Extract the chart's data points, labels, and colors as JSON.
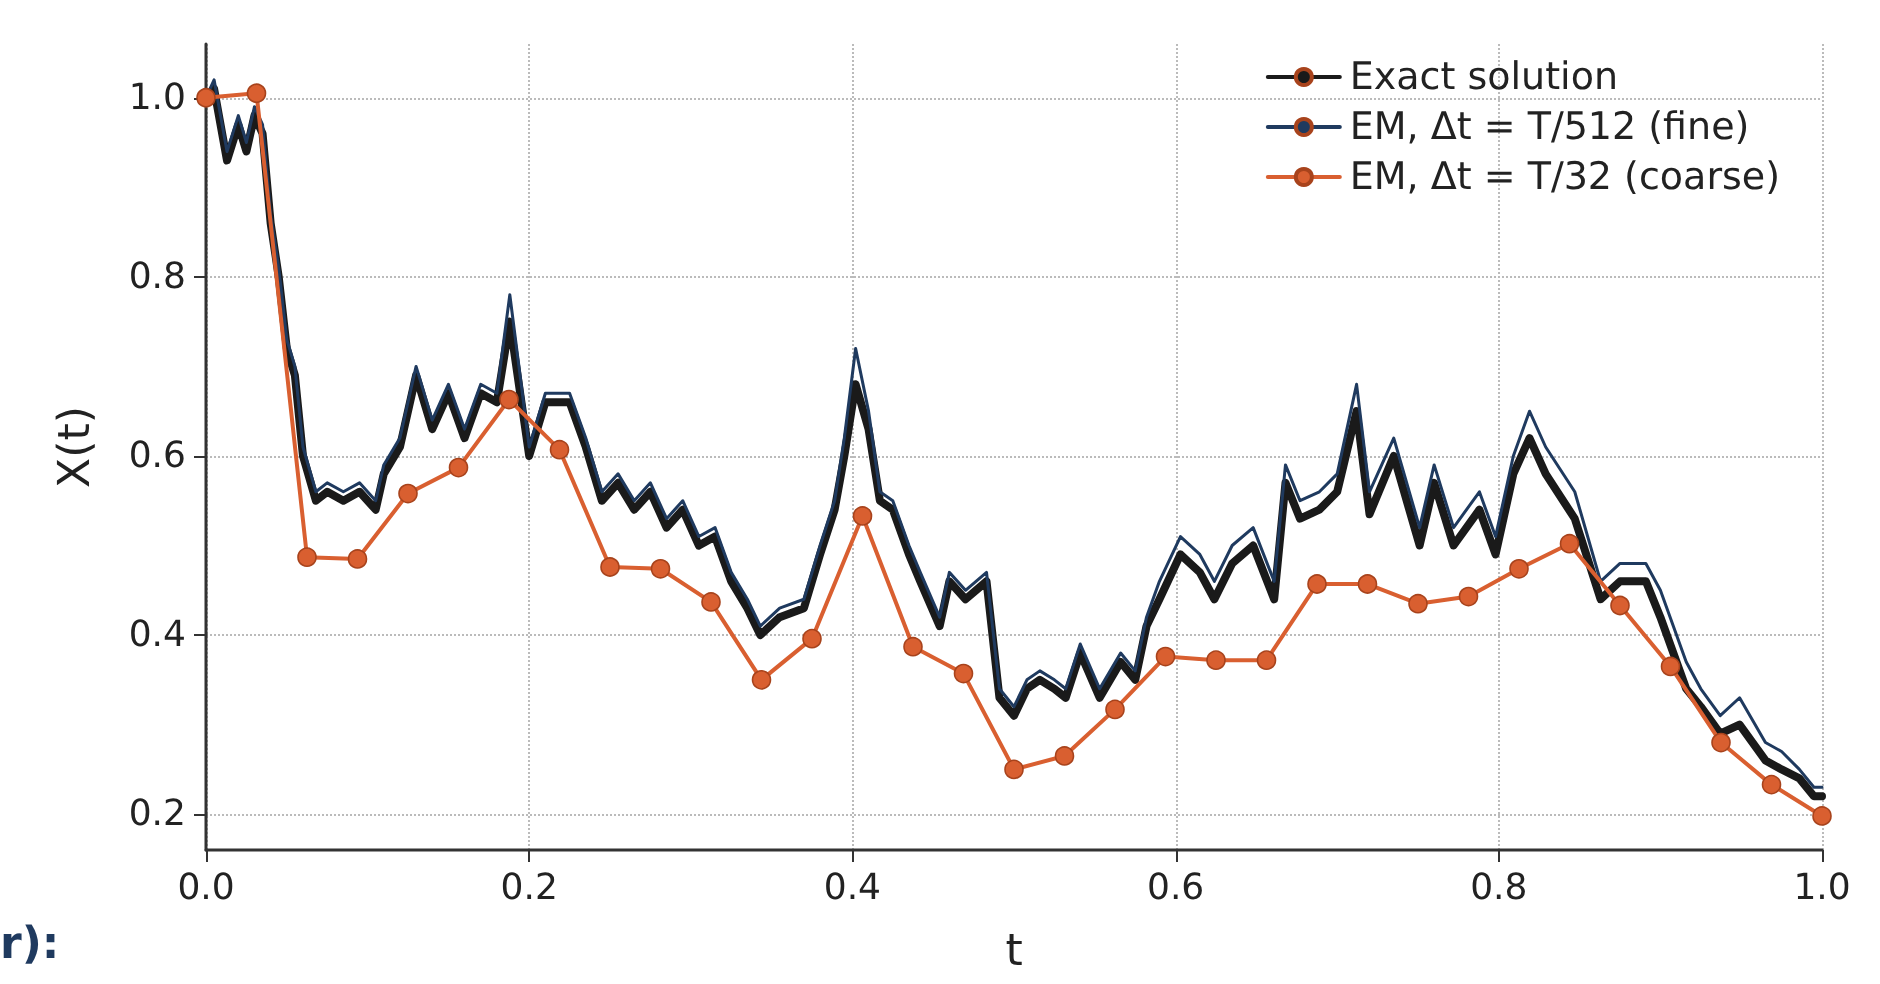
{
  "chart_data": {
    "type": "line",
    "xlabel": "t",
    "ylabel": "X(t)",
    "xlim": [
      0,
      1
    ],
    "ylim": [
      0.16,
      1.06
    ],
    "xticks": [
      {
        "value": 0,
        "label": "0.0"
      },
      0.2,
      0.4,
      0.6,
      0.8,
      {
        "value": 1,
        "label": "1.0"
      }
    ],
    "yticks": [
      0.2,
      0.4,
      0.6,
      0.8,
      {
        "value": 1,
        "label": "1.0"
      }
    ],
    "grid": true,
    "legend": "top right",
    "annotations": [
      "r):"
    ],
    "series": [
      {
        "name": "Exact solution",
        "color": "#1a1a1a",
        "marker": "none",
        "x": [
          0,
          0.005,
          0.013,
          0.02,
          0.025,
          0.03,
          0.035,
          0.04,
          0.045,
          0.05,
          0.055,
          0.06,
          0.068,
          0.075,
          0.085,
          0.095,
          0.105,
          0.11,
          0.12,
          0.13,
          0.14,
          0.15,
          0.16,
          0.17,
          0.18,
          0.188,
          0.2,
          0.21,
          0.225,
          0.235,
          0.245,
          0.255,
          0.265,
          0.275,
          0.285,
          0.295,
          0.305,
          0.315,
          0.325,
          0.335,
          0.343,
          0.355,
          0.37,
          0.38,
          0.389,
          0.395,
          0.402,
          0.41,
          0.417,
          0.425,
          0.435,
          0.442,
          0.454,
          0.46,
          0.47,
          0.483,
          0.491,
          0.5,
          0.508,
          0.516,
          0.525,
          0.532,
          0.541,
          0.553,
          0.566,
          0.575,
          0.582,
          0.59,
          0.603,
          0.615,
          0.624,
          0.635,
          0.648,
          0.661,
          0.668,
          0.677,
          0.689,
          0.7,
          0.712,
          0.72,
          0.735,
          0.751,
          0.76,
          0.772,
          0.788,
          0.798,
          0.809,
          0.819,
          0.829,
          0.847,
          0.863,
          0.875,
          0.891,
          0.9,
          0.916,
          0.925,
          0.937,
          0.949,
          0.965,
          0.975,
          0.986,
          0.995,
          1
        ],
        "values": [
          1.0,
          1.01,
          0.93,
          0.97,
          0.94,
          0.98,
          0.96,
          0.86,
          0.8,
          0.72,
          0.69,
          0.6,
          0.55,
          0.56,
          0.55,
          0.56,
          0.54,
          0.58,
          0.61,
          0.69,
          0.63,
          0.67,
          0.62,
          0.67,
          0.66,
          0.75,
          0.6,
          0.66,
          0.66,
          0.61,
          0.55,
          0.57,
          0.54,
          0.56,
          0.52,
          0.54,
          0.5,
          0.51,
          0.46,
          0.43,
          0.4,
          0.42,
          0.43,
          0.49,
          0.54,
          0.6,
          0.68,
          0.63,
          0.55,
          0.54,
          0.49,
          0.46,
          0.41,
          0.46,
          0.44,
          0.46,
          0.33,
          0.31,
          0.34,
          0.35,
          0.34,
          0.33,
          0.38,
          0.33,
          0.37,
          0.35,
          0.41,
          0.44,
          0.49,
          0.47,
          0.44,
          0.48,
          0.5,
          0.44,
          0.57,
          0.53,
          0.54,
          0.56,
          0.65,
          0.535,
          0.6,
          0.5,
          0.57,
          0.5,
          0.54,
          0.49,
          0.58,
          0.62,
          0.58,
          0.53,
          0.44,
          0.46,
          0.46,
          0.42,
          0.34,
          0.32,
          0.29,
          0.3,
          0.26,
          0.25,
          0.24,
          0.22,
          0.22
        ]
      },
      {
        "name": "EM, Δt = T/512 (fine)",
        "color": "#1f3a5f",
        "marker": "none",
        "x": [
          0,
          0.005,
          0.013,
          0.02,
          0.025,
          0.03,
          0.035,
          0.04,
          0.045,
          0.05,
          0.055,
          0.06,
          0.068,
          0.075,
          0.085,
          0.095,
          0.105,
          0.11,
          0.12,
          0.13,
          0.14,
          0.15,
          0.16,
          0.17,
          0.18,
          0.188,
          0.2,
          0.21,
          0.225,
          0.235,
          0.245,
          0.255,
          0.265,
          0.275,
          0.285,
          0.295,
          0.305,
          0.315,
          0.325,
          0.335,
          0.343,
          0.355,
          0.37,
          0.38,
          0.389,
          0.395,
          0.402,
          0.41,
          0.417,
          0.425,
          0.435,
          0.442,
          0.454,
          0.46,
          0.47,
          0.483,
          0.491,
          0.5,
          0.508,
          0.516,
          0.525,
          0.532,
          0.541,
          0.553,
          0.566,
          0.575,
          0.582,
          0.59,
          0.603,
          0.615,
          0.624,
          0.635,
          0.648,
          0.661,
          0.668,
          0.677,
          0.689,
          0.7,
          0.712,
          0.72,
          0.735,
          0.751,
          0.76,
          0.772,
          0.788,
          0.798,
          0.809,
          0.819,
          0.829,
          0.847,
          0.863,
          0.875,
          0.891,
          0.9,
          0.916,
          0.925,
          0.937,
          0.949,
          0.965,
          0.975,
          0.986,
          0.995,
          1
        ],
        "values": [
          1.0,
          1.02,
          0.94,
          0.98,
          0.95,
          0.99,
          0.97,
          0.87,
          0.81,
          0.73,
          0.7,
          0.61,
          0.56,
          0.57,
          0.56,
          0.57,
          0.55,
          0.59,
          0.62,
          0.7,
          0.64,
          0.68,
          0.63,
          0.68,
          0.67,
          0.78,
          0.61,
          0.67,
          0.67,
          0.62,
          0.56,
          0.58,
          0.55,
          0.57,
          0.53,
          0.55,
          0.51,
          0.52,
          0.47,
          0.44,
          0.41,
          0.43,
          0.44,
          0.5,
          0.55,
          0.62,
          0.72,
          0.65,
          0.56,
          0.55,
          0.5,
          0.47,
          0.42,
          0.47,
          0.45,
          0.47,
          0.34,
          0.32,
          0.35,
          0.36,
          0.35,
          0.34,
          0.39,
          0.34,
          0.38,
          0.36,
          0.42,
          0.46,
          0.51,
          0.49,
          0.46,
          0.5,
          0.52,
          0.46,
          0.59,
          0.55,
          0.56,
          0.58,
          0.68,
          0.56,
          0.62,
          0.52,
          0.59,
          0.52,
          0.56,
          0.51,
          0.6,
          0.65,
          0.61,
          0.56,
          0.46,
          0.48,
          0.48,
          0.45,
          0.37,
          0.34,
          0.31,
          0.33,
          0.28,
          0.27,
          0.25,
          0.23,
          0.23
        ]
      },
      {
        "name": "EM, Δt = T/32 (coarse)",
        "color": "#d95f30",
        "marker": "circle",
        "x": [
          0,
          0.03125,
          0.0625,
          0.09375,
          0.125,
          0.15625,
          0.1875,
          0.21875,
          0.25,
          0.28125,
          0.3125,
          0.34375,
          0.375,
          0.40625,
          0.4375,
          0.46875,
          0.5,
          0.53125,
          0.5625,
          0.59375,
          0.625,
          0.65625,
          0.6875,
          0.71875,
          0.75,
          0.78125,
          0.8125,
          0.84375,
          0.875,
          0.90625,
          0.9375,
          0.96875,
          1
        ],
        "values": [
          1.0,
          1.005,
          0.487,
          0.485,
          0.558,
          0.587,
          0.663,
          0.607,
          0.476,
          0.474,
          0.437,
          0.35,
          0.396,
          0.533,
          0.387,
          0.357,
          0.25,
          0.265,
          0.317,
          0.376,
          0.372,
          0.372,
          0.457,
          0.457,
          0.435,
          0.443,
          0.474,
          0.502,
          0.433,
          0.365,
          0.28,
          0.233,
          0.198
        ]
      }
    ]
  }
}
